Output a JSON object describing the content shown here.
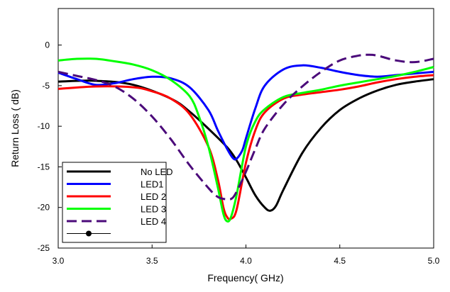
{
  "chart_data": {
    "type": "line",
    "xlabel": "Frequency( GHz)",
    "ylabel": "Return Loss ( dB)",
    "xlim": [
      3.0,
      5.0
    ],
    "ylim": [
      -25,
      4.5
    ],
    "x_ticks": [
      "3.0",
      "3.5",
      "4.0",
      "4.5",
      "5.0"
    ],
    "y_ticks": [
      "0",
      "-5",
      "-10",
      "-15",
      "-20",
      "-25"
    ],
    "legend_position": "bottom-left",
    "grid": false,
    "series": [
      {
        "name": "No LED",
        "color": "#000000",
        "dash": "solid",
        "x": [
          3.0,
          3.2,
          3.4,
          3.6,
          3.7,
          3.8,
          3.9,
          3.95,
          4.0,
          4.05,
          4.1,
          4.13,
          4.16,
          4.2,
          4.3,
          4.4,
          4.5,
          4.6,
          4.7,
          4.8,
          4.9,
          5.0
        ],
        "y": [
          -4.5,
          -4.4,
          -4.9,
          -6.6,
          -8.2,
          -10.3,
          -12.6,
          -14.2,
          -16.3,
          -18.5,
          -20.0,
          -20.4,
          -19.8,
          -17.8,
          -13.3,
          -10.2,
          -8.0,
          -6.6,
          -5.6,
          -4.9,
          -4.5,
          -4.2
        ]
      },
      {
        "name": "LED1",
        "color": "#0000ff",
        "dash": "solid",
        "x": [
          3.0,
          3.1,
          3.2,
          3.3,
          3.4,
          3.5,
          3.6,
          3.7,
          3.8,
          3.85,
          3.9,
          3.93,
          3.95,
          3.98,
          4.0,
          4.05,
          4.1,
          4.2,
          4.3,
          4.4,
          4.5,
          4.6,
          4.7,
          4.8,
          4.9,
          5.0
        ],
        "y": [
          -3.4,
          -4.2,
          -4.9,
          -4.7,
          -4.2,
          -3.9,
          -4.1,
          -5.2,
          -8.0,
          -10.5,
          -12.8,
          -13.9,
          -14.0,
          -13.0,
          -11.5,
          -7.8,
          -5.0,
          -3.0,
          -2.5,
          -2.8,
          -3.3,
          -3.7,
          -3.9,
          -3.7,
          -3.5,
          -3.3
        ]
      },
      {
        "name": "LED 2",
        "color": "#ff0000",
        "dash": "solid",
        "x": [
          3.0,
          3.2,
          3.4,
          3.5,
          3.6,
          3.7,
          3.8,
          3.85,
          3.88,
          3.9,
          3.92,
          3.95,
          4.0,
          4.05,
          4.1,
          4.2,
          4.3,
          4.4,
          4.5,
          4.6,
          4.7,
          4.8,
          4.9,
          5.0
        ],
        "y": [
          -5.4,
          -5.1,
          -5.2,
          -5.7,
          -6.6,
          -8.5,
          -12.5,
          -16.5,
          -20.0,
          -21.2,
          -21.4,
          -20.3,
          -14.5,
          -10.5,
          -8.3,
          -6.6,
          -6.1,
          -5.8,
          -5.5,
          -5.1,
          -4.6,
          -4.2,
          -3.9,
          -3.7
        ]
      },
      {
        "name": "LED 3",
        "color": "#00ff00",
        "dash": "solid",
        "x": [
          3.0,
          3.1,
          3.2,
          3.3,
          3.4,
          3.5,
          3.6,
          3.7,
          3.75,
          3.8,
          3.85,
          3.88,
          3.9,
          3.92,
          3.95,
          4.0,
          4.05,
          4.1,
          4.2,
          4.3,
          4.4,
          4.5,
          4.6,
          4.7,
          4.8,
          4.9,
          5.0
        ],
        "y": [
          -1.9,
          -1.7,
          -1.7,
          -2.0,
          -2.4,
          -3.1,
          -4.3,
          -6.3,
          -8.8,
          -12.5,
          -17.5,
          -20.8,
          -21.7,
          -21.2,
          -18.5,
          -12.5,
          -9.4,
          -7.9,
          -6.4,
          -5.9,
          -5.5,
          -5.0,
          -4.6,
          -4.2,
          -3.8,
          -3.3,
          -2.7
        ]
      },
      {
        "name": "LED 4",
        "color": "#4b0a7a",
        "dash": "dashed",
        "x": [
          3.0,
          3.1,
          3.2,
          3.3,
          3.4,
          3.5,
          3.6,
          3.7,
          3.8,
          3.85,
          3.9,
          3.93,
          3.96,
          4.0,
          4.05,
          4.1,
          4.2,
          4.3,
          4.4,
          4.5,
          4.6,
          4.65,
          4.7,
          4.8,
          4.9,
          5.0
        ],
        "y": [
          -3.3,
          -3.8,
          -4.3,
          -5.1,
          -6.6,
          -8.8,
          -11.6,
          -14.8,
          -17.6,
          -18.7,
          -19.0,
          -18.8,
          -17.6,
          -15.6,
          -12.8,
          -10.3,
          -7.3,
          -5.1,
          -3.3,
          -1.9,
          -1.3,
          -1.2,
          -1.3,
          -1.9,
          -2.1,
          -1.7
        ]
      },
      {
        "name": "",
        "color": "#000000",
        "dash": "solid",
        "marker": "circle",
        "x": [],
        "y": []
      }
    ]
  }
}
